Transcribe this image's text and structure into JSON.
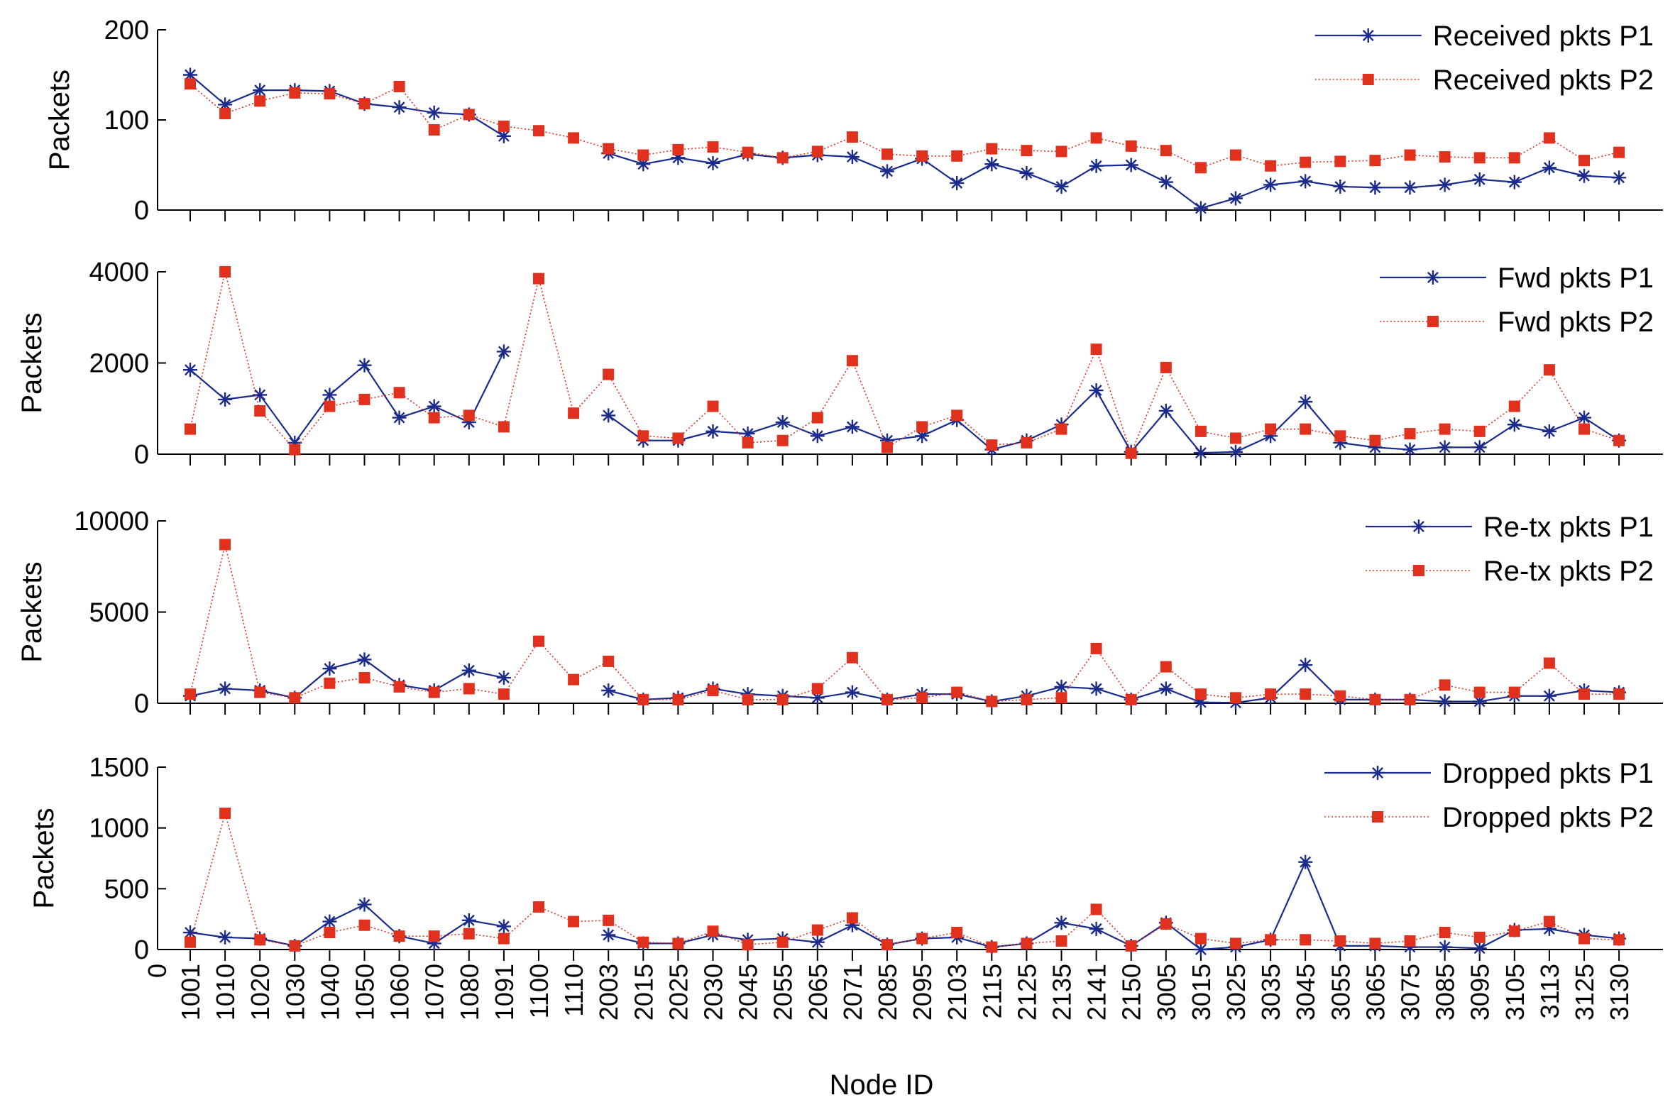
{
  "chart_data": {
    "type": "line",
    "xlabel": "Node ID",
    "x_zero_label": "0",
    "categories": [
      "1001",
      "1010",
      "1020",
      "1030",
      "1040",
      "1050",
      "1060",
      "1070",
      "1080",
      "1091",
      "1100",
      "1110",
      "2003",
      "2015",
      "2025",
      "2030",
      "2045",
      "2055",
      "2065",
      "2071",
      "2085",
      "2095",
      "2103",
      "2115",
      "2125",
      "2135",
      "2141",
      "2150",
      "3005",
      "3015",
      "3025",
      "3035",
      "3045",
      "3055",
      "3065",
      "3075",
      "3085",
      "3095",
      "3105",
      "3113",
      "3125",
      "3130"
    ],
    "colors": {
      "p1": "#1a2b8c",
      "p2": "#e0301e",
      "axis": "#000000"
    },
    "panels": [
      {
        "ylabel": "Packets",
        "ylim": [
          0,
          200
        ],
        "yticks": [
          0,
          100,
          200
        ],
        "legend_position": "top-right",
        "series": [
          {
            "name": "Received pkts P1",
            "marker": "asterisk",
            "line": "solid",
            "values": [
              150,
              117,
              133,
              133,
              132,
              118,
              114,
              108,
              106,
              82,
              null,
              null,
              63,
              51,
              58,
              52,
              62,
              58,
              61,
              59,
              43,
              57,
              30,
              51,
              41,
              26,
              49,
              50,
              31,
              2,
              13,
              28,
              32,
              26,
              25,
              25,
              28,
              34,
              31,
              47,
              38,
              36
            ]
          },
          {
            "name": "Received pkts P2",
            "marker": "square",
            "line": "dotted",
            "values": [
              140,
              107,
              121,
              130,
              129,
              118,
              137,
              89,
              106,
              93,
              88,
              80,
              68,
              61,
              67,
              70,
              64,
              58,
              65,
              81,
              62,
              60,
              60,
              68,
              66,
              65,
              80,
              71,
              66,
              47,
              61,
              49,
              53,
              54,
              55,
              61,
              59,
              58,
              58,
              80,
              55,
              64
            ]
          }
        ]
      },
      {
        "ylabel": "Packets",
        "ylim": [
          0,
          4000
        ],
        "yticks": [
          0,
          2000,
          4000
        ],
        "legend_position": "top-right",
        "series": [
          {
            "name": "Fwd pkts P1",
            "marker": "asterisk",
            "line": "solid",
            "values": [
              1850,
              1200,
              1300,
              250,
              1300,
              1950,
              800,
              1050,
              700,
              2250,
              null,
              null,
              850,
              300,
              300,
              500,
              450,
              700,
              400,
              600,
              300,
              400,
              750,
              100,
              300,
              650,
              1400,
              50,
              950,
              30,
              50,
              400,
              1150,
              250,
              150,
              100,
              150,
              150,
              650,
              500,
              800,
              300
            ]
          },
          {
            "name": "Fwd pkts P2",
            "marker": "square",
            "line": "dotted",
            "values": [
              550,
              4000,
              950,
              100,
              1050,
              1200,
              1350,
              800,
              850,
              600,
              3850,
              900,
              1750,
              400,
              350,
              1050,
              250,
              300,
              800,
              2050,
              150,
              600,
              850,
              200,
              250,
              550,
              2300,
              20,
              1900,
              500,
              350,
              550,
              550,
              400,
              300,
              450,
              550,
              500,
              1050,
              1850,
              550,
              300
            ]
          }
        ]
      },
      {
        "ylabel": "Packets",
        "ylim": [
          0,
          10000
        ],
        "yticks": [
          0,
          5000,
          10000
        ],
        "legend_position": "top-right",
        "series": [
          {
            "name": "Re-tx pkts P1",
            "marker": "asterisk",
            "line": "solid",
            "values": [
              400,
              800,
              700,
              300,
              1900,
              2400,
              1000,
              700,
              1800,
              1400,
              null,
              null,
              700,
              200,
              300,
              800,
              500,
              400,
              300,
              600,
              200,
              500,
              500,
              100,
              400,
              900,
              800,
              200,
              800,
              50,
              30,
              300,
              2100,
              200,
              200,
              200,
              100,
              100,
              400,
              400,
              700,
              600
            ]
          },
          {
            "name": "Re-tx pkts P2",
            "marker": "square",
            "line": "dotted",
            "values": [
              500,
              8700,
              600,
              300,
              1100,
              1400,
              900,
              600,
              800,
              500,
              3400,
              1300,
              2300,
              200,
              200,
              700,
              200,
              200,
              800,
              2500,
              200,
              300,
              600,
              100,
              200,
              300,
              3000,
              200,
              2000,
              500,
              300,
              500,
              500,
              400,
              200,
              200,
              1000,
              600,
              600,
              2200,
              500,
              500
            ]
          }
        ]
      },
      {
        "ylabel": "Packets",
        "ylim": [
          0,
          1500
        ],
        "yticks": [
          0,
          500,
          1000,
          1500
        ],
        "legend_position": "top-right",
        "series": [
          {
            "name": "Dropped pkts P1",
            "marker": "asterisk",
            "line": "solid",
            "values": [
              140,
              100,
              90,
              30,
              230,
              370,
              110,
              50,
              240,
              190,
              null,
              null,
              120,
              50,
              50,
              120,
              80,
              90,
              60,
              200,
              40,
              90,
              100,
              20,
              50,
              220,
              170,
              30,
              220,
              0,
              20,
              80,
              720,
              30,
              30,
              20,
              20,
              10,
              160,
              170,
              120,
              90
            ]
          },
          {
            "name": "Dropped pkts P2",
            "marker": "square",
            "line": "dotted",
            "values": [
              60,
              1120,
              80,
              30,
              140,
              200,
              110,
              110,
              130,
              90,
              350,
              230,
              240,
              60,
              50,
              150,
              40,
              60,
              160,
              260,
              40,
              90,
              140,
              20,
              50,
              70,
              330,
              30,
              210,
              90,
              50,
              80,
              80,
              70,
              50,
              70,
              140,
              100,
              150,
              230,
              90,
              80
            ]
          }
        ]
      }
    ]
  }
}
